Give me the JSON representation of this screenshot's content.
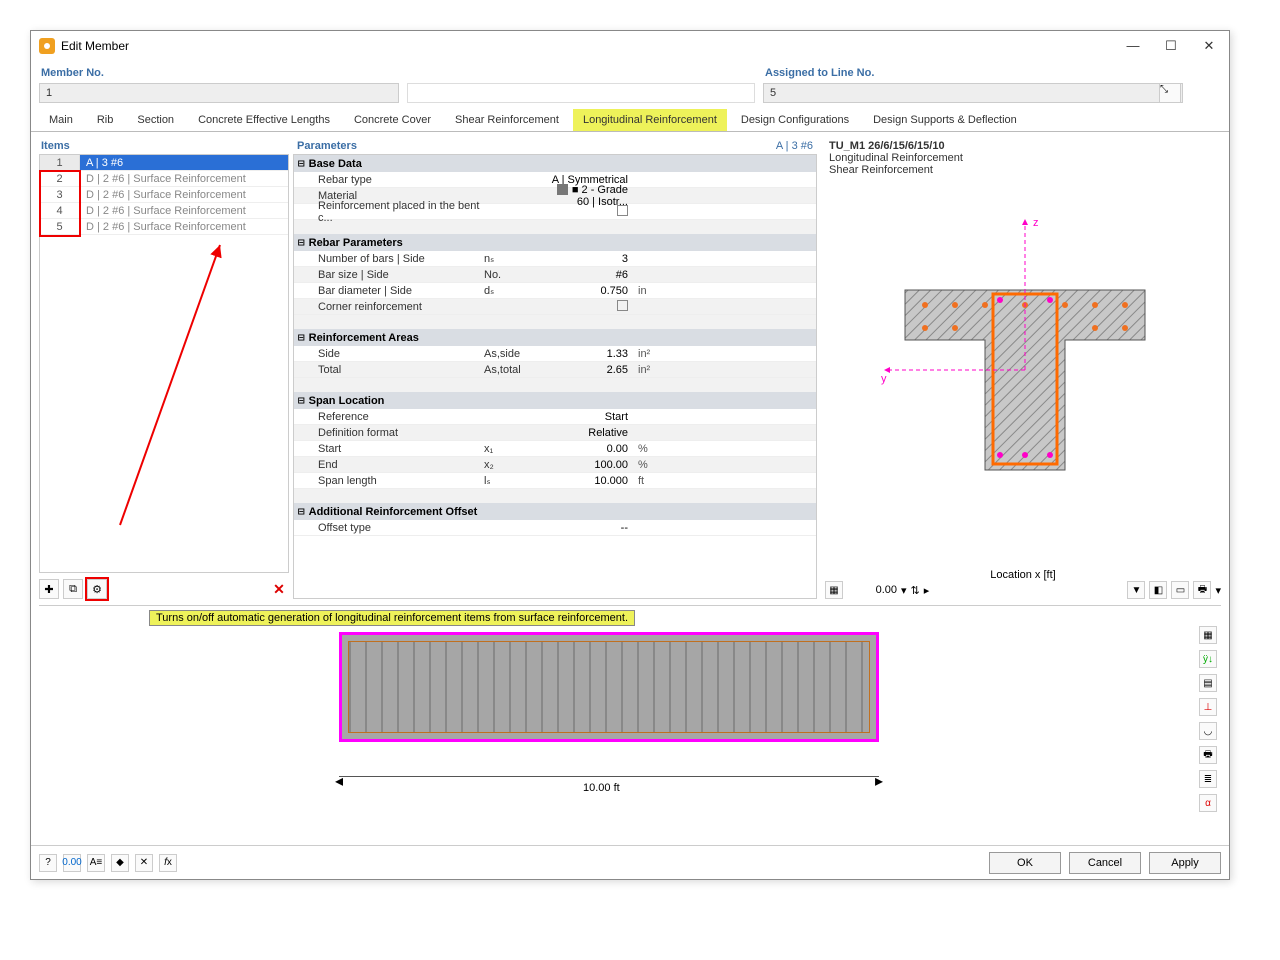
{
  "window": {
    "title": "Edit Member",
    "minimize": "—",
    "maximize": "☐",
    "close": "✕"
  },
  "header": {
    "memberNoLabel": "Member No.",
    "memberNo": "1",
    "assignedLabel": "Assigned to Line No.",
    "assignedVal": "5"
  },
  "tabs": [
    "Main",
    "Rib",
    "Section",
    "Concrete Effective Lengths",
    "Concrete Cover",
    "Shear Reinforcement",
    "Longitudinal Reinforcement",
    "Design Configurations",
    "Design Supports & Deflection"
  ],
  "activeTab": 6,
  "items": {
    "label": "Items",
    "rows": [
      {
        "n": "1",
        "t": "A | 3 #6",
        "sel": true
      },
      {
        "n": "2",
        "t": "D | 2 #6 | Surface Reinforcement"
      },
      {
        "n": "3",
        "t": "D | 2 #6 | Surface Reinforcement"
      },
      {
        "n": "4",
        "t": "D | 2 #6 | Surface Reinforcement"
      },
      {
        "n": "5",
        "t": "D | 2 #6 | Surface Reinforcement"
      }
    ]
  },
  "parameters": {
    "label": "Parameters",
    "badge": "A | 3 #6",
    "sections": [
      {
        "title": "Base Data",
        "rows": [
          {
            "l": "Rebar type",
            "s": "",
            "v": "A | Symmetrical",
            "u": ""
          },
          {
            "l": "Material",
            "s": "",
            "v": "■ 2 - Grade 60 | Isotr...",
            "u": "",
            "swatch": true
          },
          {
            "l": "Reinforcement placed in the bent c...",
            "s": "",
            "v": "",
            "u": "",
            "chk": true
          }
        ]
      },
      {
        "title": "Rebar Parameters",
        "rows": [
          {
            "l": "Number of bars | Side",
            "s": "nₛ",
            "v": "3",
            "u": ""
          },
          {
            "l": "Bar size | Side",
            "s": "No.",
            "v": "#6",
            "u": ""
          },
          {
            "l": "Bar diameter | Side",
            "s": "dₛ",
            "v": "0.750",
            "u": "in"
          },
          {
            "l": "Corner reinforcement",
            "s": "",
            "v": "",
            "u": "",
            "chk": true
          }
        ]
      },
      {
        "title": "Reinforcement Areas",
        "rows": [
          {
            "l": "Side",
            "s": "As,side",
            "v": "1.33",
            "u": "in²"
          },
          {
            "l": "Total",
            "s": "As,total",
            "v": "2.65",
            "u": "in²"
          }
        ]
      },
      {
        "title": "Span Location",
        "rows": [
          {
            "l": "Reference",
            "s": "",
            "v": "Start",
            "u": ""
          },
          {
            "l": "Definition format",
            "s": "",
            "v": "Relative",
            "u": ""
          },
          {
            "l": "Start",
            "s": "x₁",
            "v": "0.00",
            "u": "%"
          },
          {
            "l": "End",
            "s": "x₂",
            "v": "100.00",
            "u": "%"
          },
          {
            "l": "Span length",
            "s": "lₛ",
            "v": "10.000",
            "u": "ft"
          }
        ]
      },
      {
        "title": "Additional Reinforcement Offset",
        "rows": [
          {
            "l": "Offset type",
            "s": "",
            "v": "--",
            "u": ""
          }
        ]
      }
    ]
  },
  "preview": {
    "line1": "TU_M1 26/6/15/6/15/10",
    "line2": "Longitudinal Reinforcement",
    "line3": "Shear Reinforcement",
    "locLabel": "Location x [ft]",
    "locVal": "0.00"
  },
  "tooltip": "Turns on/off automatic generation of longitudinal reinforcement items from surface reinforcement.",
  "elev": {
    "dim": "10.00 ft"
  },
  "footer": {
    "ok": "OK",
    "cancel": "Cancel",
    "apply": "Apply"
  },
  "colors": {
    "highlight": "#eef25a",
    "selBlue": "#2a6fd6",
    "red": "#e00000",
    "magenta": "#ff00c8",
    "orange": "#f08030",
    "axis": "#ff00c8"
  }
}
